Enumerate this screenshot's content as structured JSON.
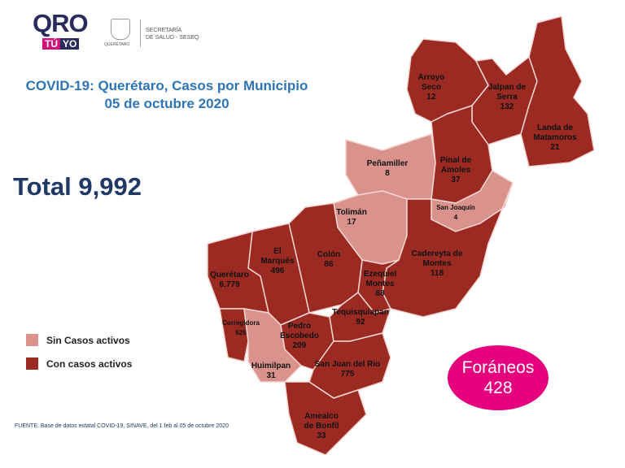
{
  "header": {
    "logo_main": "QRO",
    "logo_tu": "TÚ",
    "logo_yo": "YO",
    "seal_text": "QUERÉTARO",
    "ministry_line1": "SECRETARÍA",
    "ministry_line2": "DE SALUD - SESEQ"
  },
  "title": {
    "line1": "COVID-19: Querétaro, Casos por Municipio",
    "line2": "05 de octubre 2020"
  },
  "total": "Total 9,992",
  "legend": {
    "no_active": {
      "label": "Sin Casos activos",
      "color": "#d9928c"
    },
    "active": {
      "label": "Con casos activos",
      "color": "#9b2a22"
    }
  },
  "municipalities": [
    {
      "name": "Arroyo Seco",
      "lines": [
        "Arroyo",
        "Seco"
      ],
      "cases": "12",
      "active": true
    },
    {
      "name": "Jalpan de Serra",
      "lines": [
        "Jalpan de",
        "Serra"
      ],
      "cases": "132",
      "active": true
    },
    {
      "name": "Landa de Matamoros",
      "lines": [
        "Landa de",
        "Matamoros"
      ],
      "cases": "21",
      "active": true
    },
    {
      "name": "Pinal de Amoles",
      "lines": [
        "Pinal de",
        "Amoles"
      ],
      "cases": "37",
      "active": true
    },
    {
      "name": "Peñamiller",
      "lines": [
        "Peñamiller"
      ],
      "cases": "8",
      "active": false
    },
    {
      "name": "San Joaquín",
      "lines": [
        "San Joaquín"
      ],
      "cases": "4",
      "active": false
    },
    {
      "name": "Tolimán",
      "lines": [
        "Tolimán"
      ],
      "cases": "17",
      "active": false
    },
    {
      "name": "Cadereyta de Montes",
      "lines": [
        "Cadereyta de",
        "Montes"
      ],
      "cases": "118",
      "active": true
    },
    {
      "name": "Ezequiel Montes",
      "lines": [
        "Ezequiel",
        "Montes"
      ],
      "cases": "88",
      "active": true
    },
    {
      "name": "Colón",
      "lines": [
        "Colón"
      ],
      "cases": "86",
      "active": true
    },
    {
      "name": "El Marqués",
      "lines": [
        "El",
        "Marqués"
      ],
      "cases": "496",
      "active": true
    },
    {
      "name": "Querétaro",
      "lines": [
        "Querétaro"
      ],
      "cases": "6,779",
      "active": true
    },
    {
      "name": "Corregidora",
      "lines": [
        "Corregidora"
      ],
      "cases": "626",
      "active": true
    },
    {
      "name": "Huimilpan",
      "lines": [
        "Huimilpan"
      ],
      "cases": "31",
      "active": false
    },
    {
      "name": "Pedro Escobedo",
      "lines": [
        "Pedro",
        "Escobedo"
      ],
      "cases": "209",
      "active": true
    },
    {
      "name": "Tequisquiapan",
      "lines": [
        "Tequisquiapan"
      ],
      "cases": "92",
      "active": true
    },
    {
      "name": "San Juan del Río",
      "lines": [
        "San Juan del Rio"
      ],
      "cases": "775",
      "active": true
    },
    {
      "name": "Amealco de Bonfil",
      "lines": [
        "Amealco",
        "de Bonfil"
      ],
      "cases": "33",
      "active": true
    }
  ],
  "foraneos": {
    "label": "Foráneos",
    "value": "428",
    "color": "#e6007e"
  },
  "footer": "FUENTE:  Base de datos estatal COVID-19,  SINAVE,  del 1 feb al 05 de octubre 2020"
}
